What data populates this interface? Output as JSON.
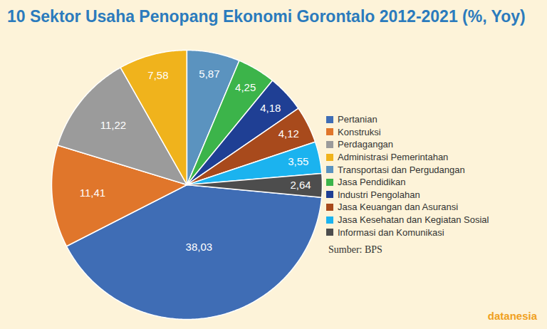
{
  "chart_data": {
    "type": "pie",
    "title": "10 Sektor Usaha Penopang Ekonomi Gorontalo 2012-2021 (%, Yoy)",
    "categories": [
      "Pertanian",
      "Konstruksi",
      "Perdagangan",
      "Administrasi Pemerintahan",
      "Transportasi dan Pergudangan",
      "Jasa Pendidikan",
      "Industri Pengolahan",
      "Jasa Keuangan dan Asuransi",
      "Jasa Kesehatan dan Kegiatan Sosial",
      "Informasi dan Komunikasi"
    ],
    "values": [
      38.03,
      11.41,
      11.22,
      7.58,
      5.87,
      4.25,
      4.18,
      4.12,
      3.55,
      2.64
    ],
    "value_labels": [
      "38,03",
      "11,41",
      "11,22",
      "7,58",
      "5,87",
      "4,25",
      "4,18",
      "4,12",
      "3,55",
      "2,64"
    ],
    "colors": [
      "#3f6db5",
      "#e0762b",
      "#9b9b9b",
      "#f0b31c",
      "#5b93bf",
      "#3cb44a",
      "#1f3f94",
      "#a84a1c",
      "#1bb3ef",
      "#4d4d4d"
    ],
    "data_labels": true,
    "legend": "right",
    "source": "Sumber: BPS",
    "watermark": "datanesia"
  }
}
